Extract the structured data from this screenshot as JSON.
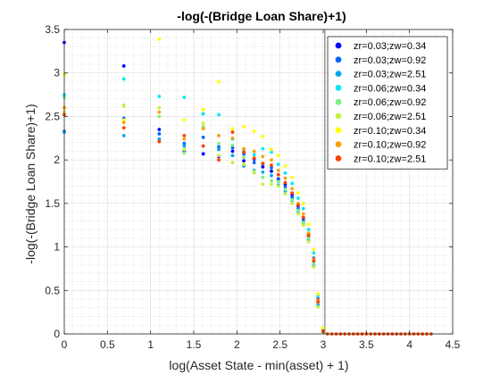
{
  "figure": {
    "background": "#ffffff"
  },
  "chart_data": {
    "type": "scatter",
    "title": "-log(-(Bridge Loan Share)+1)",
    "xlabel": "log(Asset State - min(asset) + 1)",
    "ylabel": "-log(-(Bridge Loan Share)+1)",
    "xlim": [
      0,
      4.5
    ],
    "ylim": [
      0,
      3.5
    ],
    "xticks": [
      0,
      0.5,
      1,
      1.5,
      2,
      2.5,
      3,
      3.5,
      4,
      4.5
    ],
    "yticks": [
      0,
      0.5,
      1,
      1.5,
      2,
      2.5,
      3,
      3.5
    ],
    "xtick_labels": [
      "0",
      "0.5",
      "1",
      "1.5",
      "2",
      "2.5",
      "3",
      "3.5",
      "4",
      "4.5"
    ],
    "ytick_labels": [
      "0",
      "0.5",
      "1",
      "1.5",
      "2",
      "2.5",
      "3",
      "3.5"
    ],
    "grid": true,
    "minor_grid": true,
    "legend_position": "top-right",
    "vertical_line_x": 3.02,
    "series": [
      {
        "name": "zr=0.03;zw=0.34",
        "color": "#0000ff",
        "points": [
          [
            0,
            3.35
          ],
          [
            0.69,
            3.08
          ],
          [
            1.1,
            2.35
          ],
          [
            1.39,
            2.1
          ],
          [
            1.61,
            2.07
          ],
          [
            1.79,
            2.04
          ],
          [
            1.95,
            2.1
          ],
          [
            2.08,
            1.99
          ],
          [
            2.2,
            2.01
          ],
          [
            2.3,
            1.92
          ],
          [
            2.4,
            1.87
          ],
          [
            2.48,
            1.78
          ],
          [
            2.56,
            1.72
          ],
          [
            2.64,
            1.6
          ],
          [
            2.71,
            1.47
          ],
          [
            2.77,
            1.33
          ],
          [
            2.83,
            1.15
          ],
          [
            2.89,
            0.87
          ],
          [
            2.94,
            0.4
          ],
          [
            3.0,
            0.05
          ]
        ]
      },
      {
        "name": "zr=0.03;zw=0.92",
        "color": "#0066ff",
        "points": [
          [
            0,
            2.33
          ],
          [
            0.69,
            2.48
          ],
          [
            1.1,
            2.3
          ],
          [
            1.39,
            2.19
          ],
          [
            1.61,
            2.26
          ],
          [
            1.79,
            2.15
          ],
          [
            1.95,
            2.14
          ],
          [
            2.08,
            2.07
          ],
          [
            2.2,
            1.97
          ],
          [
            2.3,
            1.95
          ],
          [
            2.4,
            1.91
          ],
          [
            2.48,
            1.77
          ],
          [
            2.56,
            1.69
          ],
          [
            2.64,
            1.57
          ],
          [
            2.71,
            1.44
          ],
          [
            2.77,
            1.3
          ],
          [
            2.83,
            1.12
          ],
          [
            2.89,
            0.83
          ],
          [
            2.94,
            0.35
          ],
          [
            3.0,
            0.02
          ]
        ]
      },
      {
        "name": "zr=0.03;zw=2.51",
        "color": "#00a8f0",
        "points": [
          [
            0,
            2.32
          ],
          [
            0.69,
            2.28
          ],
          [
            1.1,
            2.24
          ],
          [
            1.39,
            2.16
          ],
          [
            1.61,
            2.53
          ],
          [
            1.79,
            2.12
          ],
          [
            1.95,
            2.05
          ],
          [
            2.08,
            1.93
          ],
          [
            2.2,
            1.88
          ],
          [
            2.3,
            1.86
          ],
          [
            2.4,
            1.82
          ],
          [
            2.48,
            1.71
          ],
          [
            2.56,
            1.64
          ],
          [
            2.64,
            1.53
          ],
          [
            2.71,
            1.4
          ],
          [
            2.77,
            1.26
          ],
          [
            2.83,
            1.08
          ],
          [
            2.89,
            0.79
          ],
          [
            2.94,
            0.33
          ],
          [
            3.0,
            0.02
          ]
        ]
      },
      {
        "name": "zr=0.06;zw=0.34",
        "color": "#00e8f8",
        "points": [
          [
            0,
            2.75
          ],
          [
            0.69,
            2.93
          ],
          [
            1.1,
            2.73
          ],
          [
            1.39,
            2.72
          ],
          [
            1.61,
            2.53
          ],
          [
            1.79,
            2.52
          ],
          [
            1.95,
            2.24
          ],
          [
            2.08,
            2.12
          ],
          [
            2.2,
            2.06
          ],
          [
            2.3,
            2.13
          ],
          [
            2.4,
            2.09
          ],
          [
            2.48,
            1.95
          ],
          [
            2.56,
            1.85
          ],
          [
            2.64,
            1.73
          ],
          [
            2.71,
            1.56
          ],
          [
            2.77,
            1.44
          ],
          [
            2.83,
            1.2
          ],
          [
            2.89,
            0.93
          ],
          [
            2.94,
            0.44
          ],
          [
            3.0,
            0.06
          ]
        ]
      },
      {
        "name": "zr=0.06;zw=0.92",
        "color": "#80f080",
        "points": [
          [
            0,
            2.72
          ],
          [
            0.69,
            2.63
          ],
          [
            1.1,
            2.5
          ],
          [
            1.39,
            2.08
          ],
          [
            1.61,
            2.38
          ],
          [
            1.79,
            2.19
          ],
          [
            1.95,
            2.17
          ],
          [
            2.08,
            2.03
          ],
          [
            2.2,
            1.87
          ],
          [
            2.3,
            1.8
          ],
          [
            2.4,
            1.76
          ],
          [
            2.48,
            1.75
          ],
          [
            2.56,
            1.66
          ],
          [
            2.64,
            1.54
          ],
          [
            2.71,
            1.42
          ],
          [
            2.77,
            1.28
          ],
          [
            2.83,
            1.1
          ],
          [
            2.89,
            0.81
          ],
          [
            2.94,
            0.36
          ],
          [
            3.0,
            0.03
          ]
        ]
      },
      {
        "name": "zr=0.06;zw=2.51",
        "color": "#c8f040",
        "points": [
          [
            0,
            2.55
          ],
          [
            0.69,
            2.62
          ],
          [
            1.1,
            2.6
          ],
          [
            1.39,
            2.12
          ],
          [
            1.61,
            2.42
          ],
          [
            1.79,
            2.05
          ],
          [
            1.95,
            1.97
          ],
          [
            2.08,
            1.95
          ],
          [
            2.2,
            1.85
          ],
          [
            2.3,
            1.72
          ],
          [
            2.4,
            1.72
          ],
          [
            2.48,
            1.7
          ],
          [
            2.56,
            1.61
          ],
          [
            2.64,
            1.5
          ],
          [
            2.71,
            1.38
          ],
          [
            2.77,
            1.25
          ],
          [
            2.83,
            1.06
          ],
          [
            2.89,
            0.77
          ],
          [
            2.94,
            0.31
          ],
          [
            3.0,
            0.02
          ]
        ]
      },
      {
        "name": "zr=0.10;zw=0.34",
        "color": "#ffff00",
        "points": [
          [
            0,
            2.98
          ],
          [
            0.69,
            2.46
          ],
          [
            1.1,
            3.39
          ],
          [
            1.39,
            2.46
          ],
          [
            1.61,
            2.58
          ],
          [
            1.79,
            2.9
          ],
          [
            1.95,
            2.36
          ],
          [
            2.08,
            2.38
          ],
          [
            2.2,
            2.33
          ],
          [
            2.3,
            2.27
          ],
          [
            2.4,
            2.12
          ],
          [
            2.48,
            2.05
          ],
          [
            2.56,
            1.93
          ],
          [
            2.64,
            1.8
          ],
          [
            2.71,
            1.62
          ],
          [
            2.77,
            1.5
          ],
          [
            2.83,
            1.26
          ],
          [
            2.89,
            0.97
          ],
          [
            2.94,
            0.46
          ],
          [
            3.0,
            0.07
          ]
        ]
      },
      {
        "name": "zr=0.10;zw=0.92",
        "color": "#ffa000",
        "points": [
          [
            0,
            2.6
          ],
          [
            0.69,
            2.43
          ],
          [
            1.1,
            2.55
          ],
          [
            1.39,
            2.24
          ],
          [
            1.61,
            2.36
          ],
          [
            1.79,
            2.28
          ],
          [
            1.95,
            2.25
          ],
          [
            2.08,
            2.13
          ],
          [
            2.2,
            2.1
          ],
          [
            2.3,
            2.04
          ],
          [
            2.4,
            2.0
          ],
          [
            2.48,
            1.88
          ],
          [
            2.56,
            1.79
          ],
          [
            2.64,
            1.67
          ],
          [
            2.71,
            1.5
          ],
          [
            2.77,
            1.38
          ],
          [
            2.83,
            1.16
          ],
          [
            2.89,
            0.86
          ],
          [
            2.94,
            0.39
          ],
          [
            3.0,
            0.04
          ]
        ]
      },
      {
        "name": "zr=0.10;zw=2.51",
        "color": "#ff4000",
        "points": [
          [
            0,
            2.52
          ],
          [
            0.69,
            2.37
          ],
          [
            1.1,
            2.21
          ],
          [
            1.39,
            2.28
          ],
          [
            1.61,
            2.16
          ],
          [
            1.79,
            2.0
          ],
          [
            1.95,
            2.32
          ],
          [
            2.08,
            2.09
          ],
          [
            2.2,
            2.02
          ],
          [
            2.3,
            1.96
          ],
          [
            2.4,
            1.94
          ],
          [
            2.48,
            1.83
          ],
          [
            2.56,
            1.74
          ],
          [
            2.64,
            1.62
          ],
          [
            2.71,
            1.48
          ],
          [
            2.77,
            1.34
          ],
          [
            2.83,
            1.13
          ],
          [
            2.89,
            0.84
          ],
          [
            2.94,
            0.37
          ],
          [
            3.0,
            0.03
          ],
          [
            3.05,
            0
          ],
          [
            3.1,
            0
          ],
          [
            3.15,
            0
          ],
          [
            3.2,
            0
          ],
          [
            3.25,
            0
          ],
          [
            3.3,
            0
          ],
          [
            3.35,
            0
          ],
          [
            3.4,
            0
          ],
          [
            3.45,
            0
          ],
          [
            3.5,
            0
          ],
          [
            3.55,
            0
          ],
          [
            3.6,
            0
          ],
          [
            3.65,
            0
          ],
          [
            3.7,
            0
          ],
          [
            3.75,
            0
          ],
          [
            3.8,
            0
          ],
          [
            3.85,
            0
          ],
          [
            3.9,
            0
          ],
          [
            3.95,
            0
          ],
          [
            4.0,
            0
          ],
          [
            4.05,
            0
          ],
          [
            4.1,
            0
          ],
          [
            4.15,
            0
          ],
          [
            4.2,
            0
          ],
          [
            4.25,
            0
          ]
        ]
      }
    ]
  }
}
